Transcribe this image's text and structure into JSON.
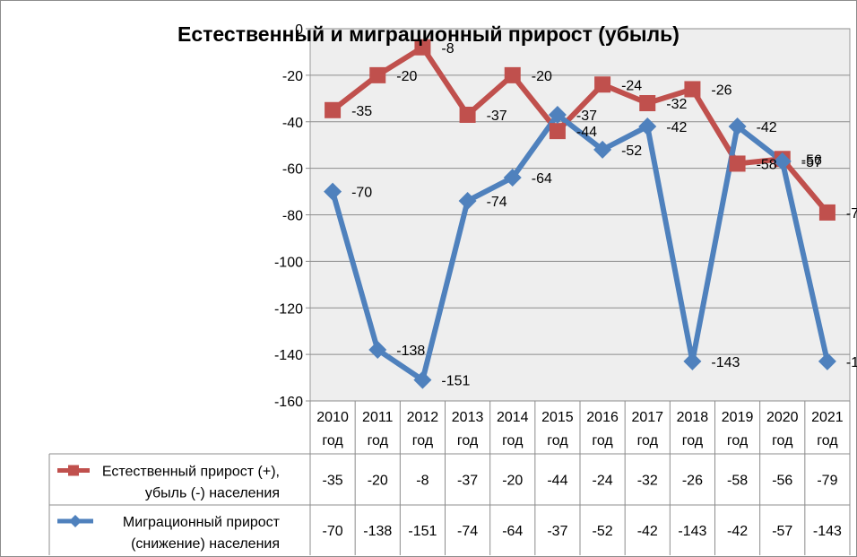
{
  "chart_data": {
    "type": "line",
    "title": "Естественный и миграционный прирост (убыль)",
    "ylim": [
      -160,
      0
    ],
    "y_ticks": [
      "-160",
      "-140",
      "-120",
      "-100",
      "-80",
      "-60",
      "-40",
      "-20",
      "0"
    ],
    "grid": true,
    "categories": [
      {
        "year": "2010",
        "unit": "год"
      },
      {
        "year": "2011",
        "unit": "год"
      },
      {
        "year": "2012",
        "unit": "год"
      },
      {
        "year": "2013",
        "unit": "год"
      },
      {
        "year": "2014",
        "unit": "год"
      },
      {
        "year": "2015",
        "unit": "год"
      },
      {
        "year": "2016",
        "unit": "год"
      },
      {
        "year": "2017",
        "unit": "год"
      },
      {
        "year": "2018",
        "unit": "год"
      },
      {
        "year": "2019",
        "unit": "год"
      },
      {
        "year": "2020",
        "unit": "год"
      },
      {
        "year": "2021",
        "unit": "год"
      }
    ],
    "series": [
      {
        "name_lines": [
          "Естественный прирост (+),",
          "убыль (-) населения"
        ],
        "color": "#c0504d",
        "marker": "square",
        "values": [
          -35,
          -20,
          -8,
          -37,
          -20,
          -44,
          -24,
          -32,
          -26,
          -58,
          -56,
          -79
        ]
      },
      {
        "name_lines": [
          "Миграционный прирост",
          "(снижение) населения"
        ],
        "color": "#4f81bd",
        "marker": "diamond",
        "values": [
          -70,
          -138,
          -151,
          -74,
          -64,
          -37,
          -52,
          -42,
          -143,
          -42,
          -57,
          -143
        ]
      }
    ]
  }
}
